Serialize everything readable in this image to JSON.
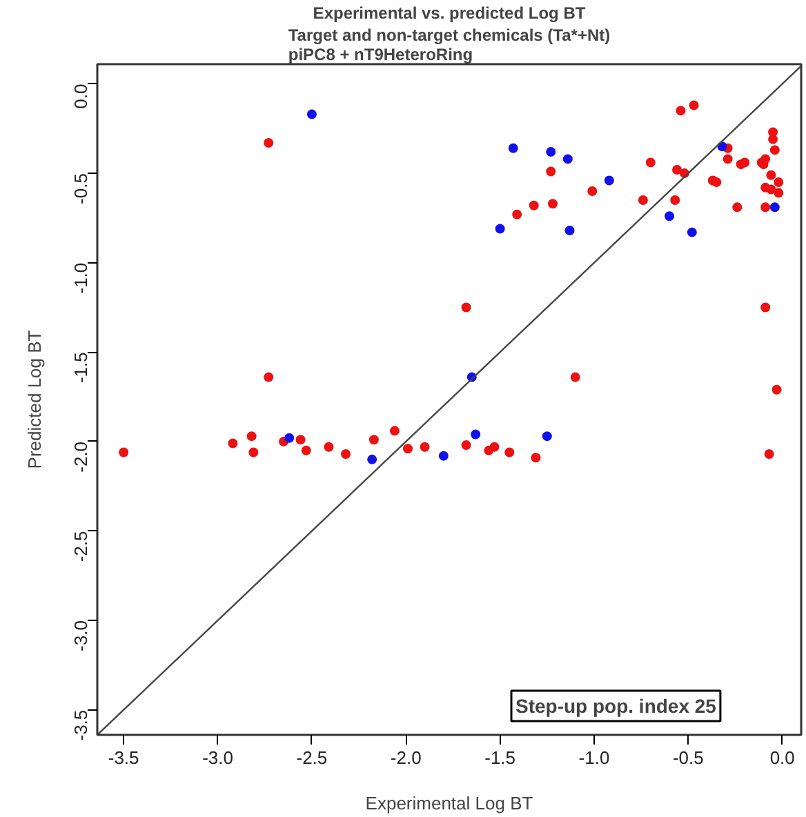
{
  "chart_data": {
    "type": "scatter",
    "title": "Experimental vs. predicted Log BT",
    "subtitle": "Target and non-target chemicals (Ta*+Nt)\npiPC8 + nT9HeteroRing",
    "xlabel": "Experimental Log BT",
    "ylabel": "Predicted Log BT",
    "xlim": [
      -3.64,
      0.1
    ],
    "ylim": [
      -3.64,
      0.11
    ],
    "xticks": [
      {
        "value": -3.5,
        "label": "-3.5"
      },
      {
        "value": -3.0,
        "label": "-3.0"
      },
      {
        "value": -2.5,
        "label": "-2.5"
      },
      {
        "value": -2.0,
        "label": "-2.0"
      },
      {
        "value": -1.5,
        "label": "-1.5"
      },
      {
        "value": -1.0,
        "label": "-1.0"
      },
      {
        "value": -0.5,
        "label": "-0.5"
      },
      {
        "value": 0.0,
        "label": "0.0"
      }
    ],
    "yticks": [
      {
        "value": -3.5,
        "label": "-3.5"
      },
      {
        "value": -3.0,
        "label": "-3.0"
      },
      {
        "value": -2.5,
        "label": "-2.5"
      },
      {
        "value": -2.0,
        "label": "-2.0"
      },
      {
        "value": -1.5,
        "label": "-1.5"
      },
      {
        "value": -1.0,
        "label": "-1.0"
      },
      {
        "value": -0.5,
        "label": "-0.5"
      },
      {
        "value": 0.0,
        "label": "0.0"
      }
    ],
    "grid": false,
    "marker": "circle",
    "annotations": [
      "Step-up pop. index 25"
    ],
    "series": [
      {
        "type": "scatter",
        "color": "#ee1111",
        "x": [
          -2.73,
          -2.73,
          -0.54,
          -0.47,
          -1.23,
          -0.7,
          -0.56,
          -0.52,
          -1.01,
          -0.74,
          -0.57,
          -1.22,
          -1.32,
          -1.41,
          -0.29,
          -0.29,
          -0.22,
          -0.2,
          -0.37,
          -0.35,
          -0.24,
          -0.05,
          -0.05,
          -0.04,
          -0.11,
          -0.09,
          -0.1,
          -0.06,
          -0.02,
          -0.09,
          -0.06,
          -0.02,
          -0.09,
          -0.09,
          -0.03,
          -1.68,
          -1.1,
          -3.5,
          -2.92,
          -2.82,
          -2.81,
          -2.65,
          -2.56,
          -2.53,
          -2.41,
          -2.32,
          -2.17,
          -2.06,
          -1.99,
          -1.9,
          -1.68,
          -1.56,
          -1.53,
          -1.45,
          -1.31,
          -0.07
        ],
        "values": [
          -0.33,
          -1.64,
          -0.15,
          -0.12,
          -0.49,
          -0.44,
          -0.48,
          -0.5,
          -0.6,
          -0.65,
          -0.65,
          -0.67,
          -0.68,
          -0.73,
          -0.36,
          -0.42,
          -0.45,
          -0.44,
          -0.54,
          -0.55,
          -0.69,
          -0.27,
          -0.31,
          -0.37,
          -0.44,
          -0.42,
          -0.45,
          -0.51,
          -0.55,
          -0.58,
          -0.59,
          -0.61,
          -0.69,
          -1.25,
          -1.71,
          -1.25,
          -1.64,
          -2.06,
          -2.01,
          -1.97,
          -2.06,
          -2.0,
          -1.99,
          -2.05,
          -2.03,
          -2.07,
          -1.99,
          -1.94,
          -2.04,
          -2.03,
          -2.02,
          -2.05,
          -2.03,
          -2.06,
          -2.09,
          -2.07
        ]
      },
      {
        "type": "scatter",
        "color": "#1111ee",
        "x": [
          -2.5,
          -1.43,
          -1.23,
          -1.14,
          -0.92,
          -1.5,
          -1.13,
          -0.6,
          -0.48,
          -0.32,
          -0.04,
          -1.65,
          -2.62,
          -2.18,
          -1.8,
          -1.63,
          -1.25
        ],
        "values": [
          -0.17,
          -0.36,
          -0.38,
          -0.42,
          -0.54,
          -0.81,
          -0.82,
          -0.74,
          -0.83,
          -0.35,
          -0.69,
          -1.64,
          -1.98,
          -2.1,
          -2.08,
          -1.96,
          -1.97
        ]
      },
      {
        "type": "line",
        "marker": "none",
        "color": "#444444",
        "x": [
          -3.64,
          0.1
        ],
        "values": [
          -3.64,
          0.1
        ]
      }
    ]
  }
}
